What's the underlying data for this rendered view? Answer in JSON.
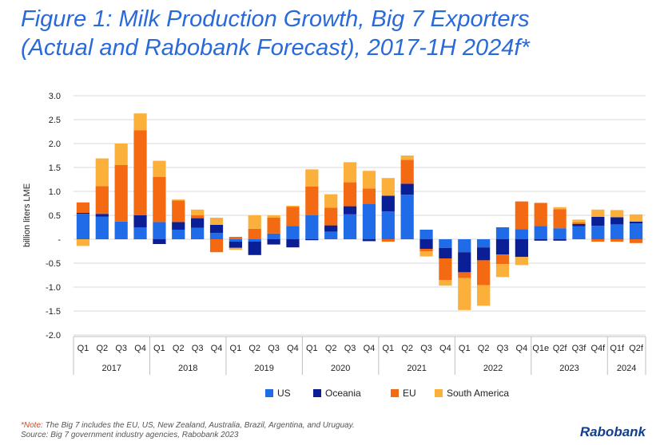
{
  "title_line1": "Figure 1: Milk Production Growth, Big 7 Exporters",
  "title_line2": "(Actual and Rabobank Forecast), 2017-1H 2024f*",
  "note_line1_prefix": "*Note:",
  "note_line1": " The Big 7 includes the EU, US, New Zealand, Australia, Brazil, Argentina, and Uruguay.",
  "note_line2": "Source: Big 7 government industry agencies, Rabobank 2023",
  "logo": "Rabobank",
  "colors": {
    "US": "#1f6be8",
    "Oceania": "#0a1e96",
    "EU": "#f46a12",
    "South America": "#fbb03b",
    "title": "#2a6ad8"
  },
  "chart_data": {
    "type": "bar",
    "stacked": true,
    "ylabel": "billion liters LME",
    "ylim": [
      -2.0,
      3.0
    ],
    "yticks": [
      "3.0",
      "2.5",
      "2.0",
      "1.5",
      "1.0",
      "0.5",
      "-",
      "-0.5",
      "-1.0",
      "-1.5",
      "-2.0"
    ],
    "grid": true,
    "legend_position": "bottom",
    "categories": [
      "Q1",
      "Q2",
      "Q3",
      "Q4",
      "Q1",
      "Q2",
      "Q3",
      "Q4",
      "Q1",
      "Q2",
      "Q3",
      "Q4",
      "Q1",
      "Q2",
      "Q3",
      "Q4",
      "Q1",
      "Q2",
      "Q3",
      "Q4",
      "Q1",
      "Q2",
      "Q3",
      "Q4",
      "Q1e",
      "Q2f",
      "Q3f",
      "Q4f",
      "Q1f",
      "Q2f"
    ],
    "year_groups": [
      {
        "label": "2017",
        "count": 4
      },
      {
        "label": "2018",
        "count": 4
      },
      {
        "label": "2019",
        "count": 4
      },
      {
        "label": "2020",
        "count": 4
      },
      {
        "label": "2021",
        "count": 4
      },
      {
        "label": "2022",
        "count": 4
      },
      {
        "label": "2023",
        "count": 4
      },
      {
        "label": "2024",
        "count": 2
      }
    ],
    "series": [
      {
        "name": "US",
        "values": [
          0.53,
          0.47,
          0.37,
          0.25,
          0.36,
          0.2,
          0.24,
          0.13,
          -0.05,
          -0.05,
          0.12,
          0.28,
          0.5,
          0.16,
          0.52,
          0.74,
          0.58,
          0.93,
          0.2,
          -0.18,
          -0.27,
          -0.17,
          0.25,
          0.21,
          0.28,
          0.23,
          0.27,
          0.28,
          0.31,
          0.33
        ]
      },
      {
        "name": "Oceania",
        "values": [
          0.02,
          0.06,
          0.0,
          0.25,
          -0.1,
          0.16,
          0.2,
          0.17,
          -0.13,
          -0.28,
          -0.11,
          -0.17,
          -0.02,
          0.13,
          0.17,
          -0.04,
          0.33,
          0.23,
          -0.2,
          -0.22,
          -0.42,
          -0.27,
          -0.32,
          -0.37,
          -0.03,
          -0.03,
          0.05,
          0.19,
          0.15,
          0.04
        ]
      },
      {
        "name": "EU",
        "values": [
          0.22,
          0.58,
          1.18,
          1.78,
          0.94,
          0.45,
          0.06,
          -0.27,
          0.05,
          0.22,
          0.33,
          0.4,
          0.6,
          0.37,
          0.5,
          0.32,
          -0.05,
          0.5,
          -0.05,
          -0.45,
          -0.12,
          -0.52,
          -0.2,
          0.58,
          0.48,
          0.4,
          0.03,
          -0.05,
          -0.05,
          -0.08
        ]
      },
      {
        "name": "South America",
        "values": [
          -0.14,
          0.58,
          0.45,
          0.35,
          0.34,
          0.02,
          0.12,
          0.15,
          -0.04,
          0.28,
          0.05,
          0.02,
          0.36,
          0.28,
          0.42,
          0.37,
          0.37,
          0.09,
          -0.11,
          -0.12,
          -0.67,
          -0.43,
          -0.27,
          -0.17,
          0.0,
          0.04,
          0.06,
          0.15,
          0.15,
          0.15
        ]
      }
    ]
  }
}
